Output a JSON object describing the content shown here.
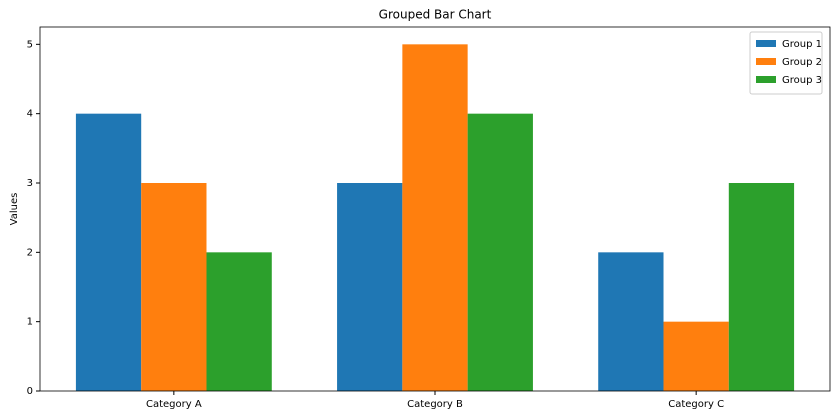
{
  "chart_data": {
    "type": "bar",
    "title": "Grouped Bar Chart",
    "y_label": "Values",
    "categories": [
      "Category A",
      "Category B",
      "Category C"
    ],
    "series": [
      {
        "name": "Group 1",
        "color": "#1f77b4",
        "values": [
          4,
          3,
          2
        ]
      },
      {
        "name": "Group 2",
        "color": "#ff7f0e",
        "values": [
          3,
          5,
          1
        ]
      },
      {
        "name": "Group 3",
        "color": "#2ca02c",
        "values": [
          2,
          4,
          3
        ]
      }
    ],
    "ylim": [
      0,
      5.25
    ],
    "yticks": [
      0,
      1,
      2,
      3,
      4,
      5
    ],
    "grid": false,
    "legend": "upper right"
  }
}
